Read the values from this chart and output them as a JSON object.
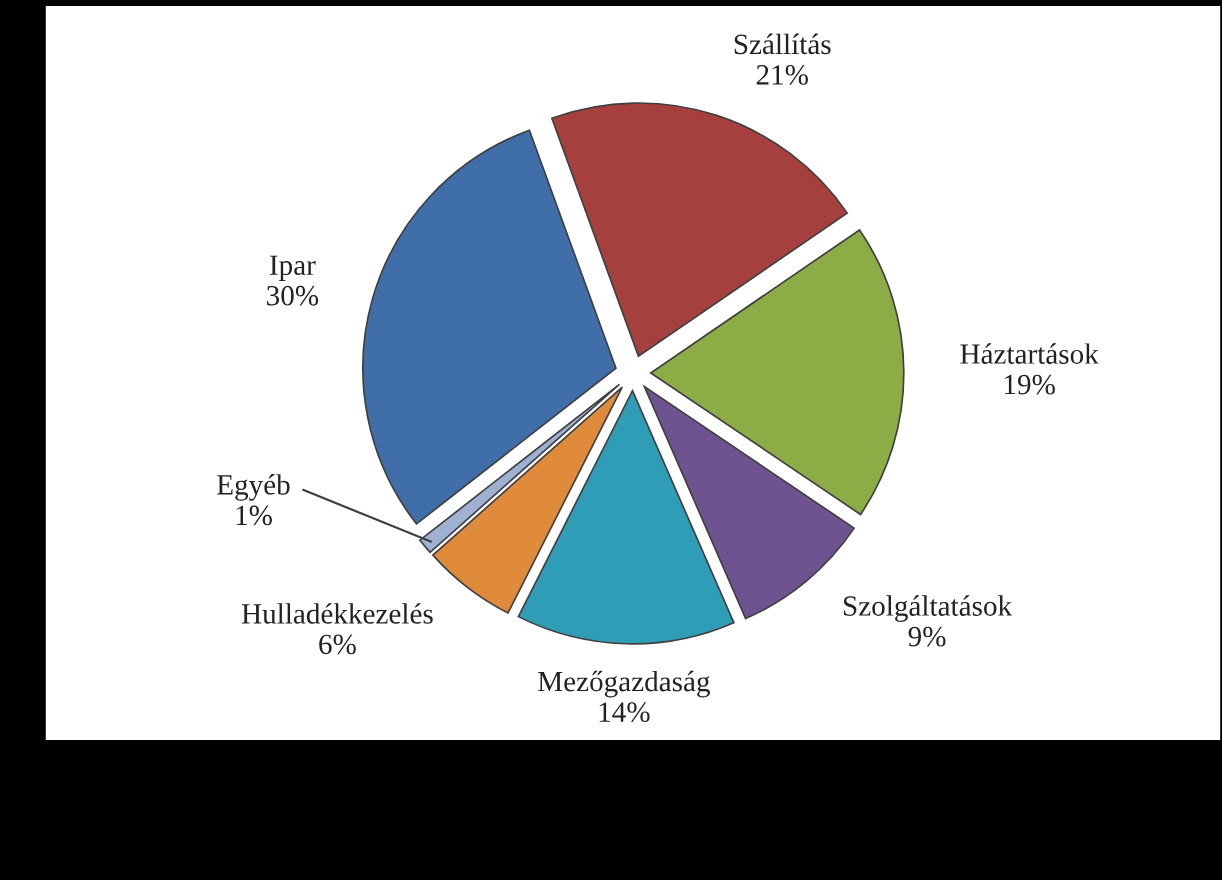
{
  "chart_data": {
    "type": "pie",
    "categories": [
      "Szállítás",
      "Háztartások",
      "Szolgáltatások",
      "Mezőgazdaság",
      "Hulladékkezelés",
      "Egyéb",
      "Ipar"
    ],
    "values": [
      21,
      19,
      9,
      14,
      6,
      1,
      30
    ],
    "colors": [
      "#a5403e",
      "#8cad46",
      "#6f5390",
      "#2f9db5",
      "#e08a3b",
      "#9fb1d3",
      "#3f6ea9"
    ],
    "value_labels": [
      "21%",
      "19%",
      "9%",
      "14%",
      "6%",
      "1%",
      "30%"
    ]
  }
}
